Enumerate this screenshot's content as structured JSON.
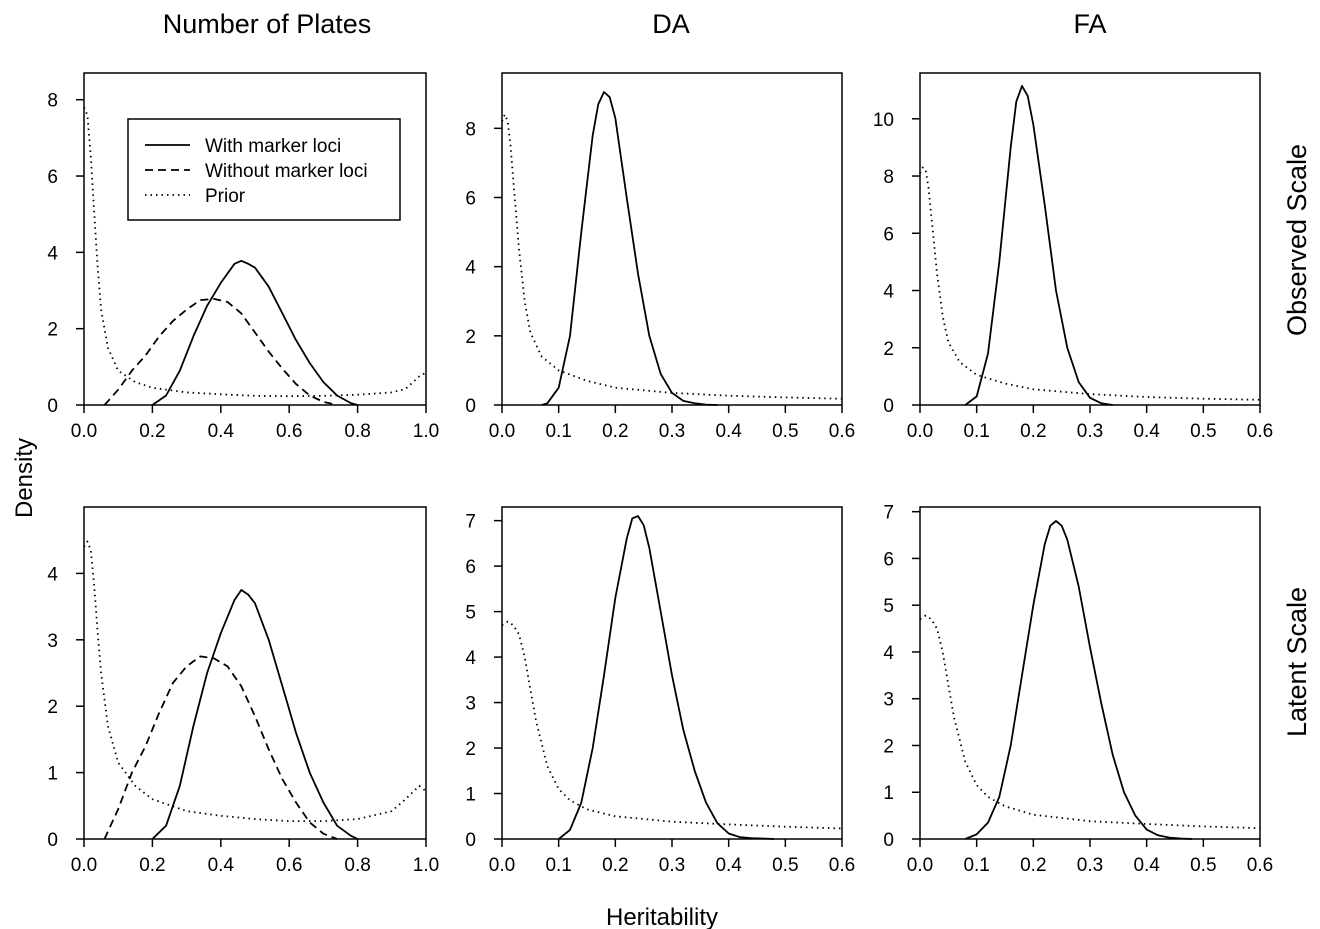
{
  "figure": {
    "column_titles": [
      "Number of Plates",
      "DA",
      "FA"
    ],
    "row_titles": [
      "Observed Scale",
      "Latent Scale"
    ],
    "xlabel": "Heritability",
    "ylabel": "Density"
  },
  "legend": {
    "placement": "top-right inside first panel",
    "entries": [
      {
        "label": "With marker loci",
        "style": "solid"
      },
      {
        "label": "Without marker loci",
        "style": "dashed"
      },
      {
        "label": "Prior",
        "style": "dotted"
      }
    ]
  },
  "chart_data": [
    {
      "type": "line",
      "panel": "Number of Plates / Observed Scale",
      "xlim": [
        0,
        1
      ],
      "ylim": [
        0,
        8.7
      ],
      "xticks": [
        "0.0",
        "0.2",
        "0.4",
        "0.6",
        "0.8",
        "1.0"
      ],
      "yticks": [
        "0",
        "2",
        "4",
        "6",
        "8"
      ],
      "series": [
        {
          "name": "With marker loci",
          "style": "solid",
          "x": [
            0.2,
            0.24,
            0.28,
            0.32,
            0.36,
            0.4,
            0.44,
            0.46,
            0.48,
            0.5,
            0.54,
            0.58,
            0.62,
            0.66,
            0.7,
            0.74,
            0.78,
            0.8
          ],
          "y": [
            0,
            0.25,
            0.9,
            1.8,
            2.6,
            3.2,
            3.7,
            3.78,
            3.7,
            3.6,
            3.1,
            2.4,
            1.7,
            1.1,
            0.6,
            0.25,
            0.05,
            0
          ]
        },
        {
          "name": "Without marker loci",
          "style": "dashed",
          "x": [
            0.06,
            0.1,
            0.14,
            0.18,
            0.22,
            0.26,
            0.3,
            0.34,
            0.38,
            0.42,
            0.46,
            0.5,
            0.54,
            0.58,
            0.62,
            0.66,
            0.7,
            0.74
          ],
          "y": [
            0,
            0.4,
            0.9,
            1.3,
            1.8,
            2.2,
            2.5,
            2.75,
            2.78,
            2.7,
            2.4,
            1.9,
            1.4,
            0.95,
            0.55,
            0.25,
            0.08,
            0
          ]
        },
        {
          "name": "Prior",
          "style": "dotted",
          "x": [
            0,
            0.01,
            0.02,
            0.03,
            0.04,
            0.05,
            0.07,
            0.1,
            0.15,
            0.2,
            0.3,
            0.4,
            0.5,
            0.6,
            0.7,
            0.8,
            0.9,
            0.94,
            0.98,
            1.0
          ],
          "y": [
            7.8,
            7.6,
            6.5,
            5,
            3.6,
            2.5,
            1.5,
            0.9,
            0.6,
            0.45,
            0.33,
            0.28,
            0.24,
            0.23,
            0.24,
            0.27,
            0.33,
            0.42,
            0.75,
            0.85
          ]
        }
      ]
    },
    {
      "type": "line",
      "panel": "DA / Observed Scale",
      "xlim": [
        0,
        0.6
      ],
      "ylim": [
        0,
        9.6
      ],
      "xticks": [
        "0.0",
        "0.1",
        "0.2",
        "0.3",
        "0.4",
        "0.5",
        "0.6"
      ],
      "yticks": [
        "0",
        "2",
        "4",
        "6",
        "8"
      ],
      "series": [
        {
          "name": "With marker loci",
          "style": "solid",
          "x": [
            0.07,
            0.08,
            0.1,
            0.12,
            0.14,
            0.16,
            0.17,
            0.18,
            0.19,
            0.2,
            0.22,
            0.24,
            0.26,
            0.28,
            0.3,
            0.32,
            0.34,
            0.36,
            0.38
          ],
          "y": [
            0,
            0.05,
            0.5,
            2,
            5,
            7.8,
            8.7,
            9.05,
            8.9,
            8.3,
            6,
            3.8,
            2,
            0.9,
            0.35,
            0.12,
            0.05,
            0.01,
            0
          ]
        },
        {
          "name": "Prior",
          "style": "dotted",
          "x": [
            0,
            0.005,
            0.01,
            0.015,
            0.02,
            0.03,
            0.04,
            0.05,
            0.07,
            0.1,
            0.15,
            0.2,
            0.3,
            0.4,
            0.5,
            0.6
          ],
          "y": [
            8.2,
            8.4,
            8.2,
            7.5,
            6.5,
            4.5,
            3,
            2.1,
            1.4,
            1,
            0.7,
            0.5,
            0.35,
            0.27,
            0.22,
            0.18
          ]
        }
      ]
    },
    {
      "type": "line",
      "panel": "FA / Observed Scale",
      "xlim": [
        0,
        0.6
      ],
      "ylim": [
        0,
        11.6
      ],
      "xticks": [
        "0.0",
        "0.1",
        "0.2",
        "0.3",
        "0.4",
        "0.5",
        "0.6"
      ],
      "yticks": [
        "0",
        "2",
        "4",
        "6",
        "8",
        "10"
      ],
      "series": [
        {
          "name": "With marker loci",
          "style": "solid",
          "x": [
            0.08,
            0.1,
            0.12,
            0.14,
            0.16,
            0.17,
            0.18,
            0.19,
            0.2,
            0.22,
            0.24,
            0.26,
            0.28,
            0.3,
            0.32,
            0.34
          ],
          "y": [
            0,
            0.3,
            1.8,
            5,
            9,
            10.6,
            11.15,
            10.8,
            9.8,
            7,
            4,
            2,
            0.8,
            0.25,
            0.06,
            0
          ]
        },
        {
          "name": "Prior",
          "style": "dotted",
          "x": [
            0,
            0.005,
            0.01,
            0.015,
            0.02,
            0.03,
            0.04,
            0.05,
            0.07,
            0.1,
            0.15,
            0.2,
            0.3,
            0.4,
            0.5,
            0.6
          ],
          "y": [
            8.1,
            8.3,
            8.2,
            7.6,
            6.6,
            4.6,
            3.1,
            2.2,
            1.5,
            1.05,
            0.75,
            0.55,
            0.38,
            0.28,
            0.22,
            0.18
          ]
        }
      ]
    },
    {
      "type": "line",
      "panel": "Number of Plates / Latent Scale",
      "xlim": [
        0,
        1
      ],
      "ylim": [
        0,
        5
      ],
      "xticks": [
        "0.0",
        "0.2",
        "0.4",
        "0.6",
        "0.8",
        "1.0"
      ],
      "yticks": [
        "0",
        "1",
        "2",
        "3",
        "4"
      ],
      "series": [
        {
          "name": "With marker loci",
          "style": "solid",
          "x": [
            0.2,
            0.24,
            0.28,
            0.32,
            0.36,
            0.4,
            0.44,
            0.46,
            0.48,
            0.5,
            0.54,
            0.58,
            0.62,
            0.66,
            0.7,
            0.74,
            0.78,
            0.8
          ],
          "y": [
            0,
            0.2,
            0.8,
            1.7,
            2.5,
            3.1,
            3.6,
            3.75,
            3.68,
            3.55,
            3.0,
            2.3,
            1.6,
            1.0,
            0.55,
            0.2,
            0.05,
            0
          ]
        },
        {
          "name": "Without marker loci",
          "style": "dashed",
          "x": [
            0.06,
            0.1,
            0.14,
            0.18,
            0.22,
            0.26,
            0.3,
            0.34,
            0.38,
            0.42,
            0.46,
            0.5,
            0.54,
            0.58,
            0.62,
            0.66,
            0.7,
            0.74
          ],
          "y": [
            0,
            0.45,
            1.0,
            1.4,
            1.9,
            2.35,
            2.6,
            2.75,
            2.72,
            2.6,
            2.3,
            1.85,
            1.35,
            0.9,
            0.55,
            0.25,
            0.08,
            0
          ]
        },
        {
          "name": "Prior",
          "style": "dotted",
          "x": [
            0,
            0.01,
            0.02,
            0.03,
            0.04,
            0.05,
            0.07,
            0.1,
            0.15,
            0.2,
            0.3,
            0.4,
            0.5,
            0.6,
            0.7,
            0.8,
            0.9,
            0.94,
            0.98,
            1.0
          ],
          "y": [
            4.4,
            4.48,
            4.35,
            3.8,
            3.1,
            2.5,
            1.7,
            1.15,
            0.8,
            0.6,
            0.42,
            0.35,
            0.3,
            0.27,
            0.27,
            0.3,
            0.42,
            0.6,
            0.8,
            0.72
          ]
        }
      ]
    },
    {
      "type": "line",
      "panel": "DA / Latent Scale",
      "xlim": [
        0,
        0.6
      ],
      "ylim": [
        0,
        7.3
      ],
      "xticks": [
        "0.0",
        "0.1",
        "0.2",
        "0.3",
        "0.4",
        "0.5",
        "0.6"
      ],
      "yticks": [
        "0",
        "1",
        "2",
        "3",
        "4",
        "5",
        "6",
        "7"
      ],
      "series": [
        {
          "name": "With marker loci",
          "style": "solid",
          "x": [
            0.1,
            0.12,
            0.14,
            0.16,
            0.18,
            0.2,
            0.22,
            0.23,
            0.24,
            0.25,
            0.26,
            0.28,
            0.3,
            0.32,
            0.34,
            0.36,
            0.38,
            0.4,
            0.42,
            0.44,
            0.46,
            0.48
          ],
          "y": [
            0,
            0.2,
            0.8,
            2,
            3.6,
            5.3,
            6.6,
            7.05,
            7.1,
            6.9,
            6.4,
            5,
            3.6,
            2.4,
            1.5,
            0.8,
            0.35,
            0.12,
            0.04,
            0.02,
            0.01,
            0
          ]
        },
        {
          "name": "Prior",
          "style": "dotted",
          "x": [
            0,
            0.01,
            0.02,
            0.03,
            0.04,
            0.05,
            0.06,
            0.08,
            0.1,
            0.12,
            0.15,
            0.2,
            0.3,
            0.4,
            0.5,
            0.6
          ],
          "y": [
            4.7,
            4.78,
            4.7,
            4.5,
            4.0,
            3.3,
            2.6,
            1.6,
            1.1,
            0.85,
            0.65,
            0.5,
            0.38,
            0.32,
            0.27,
            0.23
          ]
        }
      ]
    },
    {
      "type": "line",
      "panel": "FA / Latent Scale",
      "xlim": [
        0,
        0.6
      ],
      "ylim": [
        0,
        7.1
      ],
      "xticks": [
        "0.0",
        "0.1",
        "0.2",
        "0.3",
        "0.4",
        "0.5",
        "0.6"
      ],
      "yticks": [
        "0",
        "1",
        "2",
        "3",
        "4",
        "5",
        "6",
        "7"
      ],
      "series": [
        {
          "name": "With marker loci",
          "style": "solid",
          "x": [
            0.08,
            0.1,
            0.12,
            0.14,
            0.16,
            0.18,
            0.2,
            0.22,
            0.23,
            0.24,
            0.25,
            0.26,
            0.28,
            0.3,
            0.32,
            0.34,
            0.36,
            0.38,
            0.4,
            0.42,
            0.44,
            0.46,
            0.48
          ],
          "y": [
            0,
            0.1,
            0.35,
            0.9,
            2.0,
            3.5,
            5.0,
            6.3,
            6.7,
            6.8,
            6.7,
            6.4,
            5.4,
            4.1,
            2.9,
            1.8,
            1.0,
            0.5,
            0.2,
            0.08,
            0.03,
            0.01,
            0
          ]
        },
        {
          "name": "Prior",
          "style": "dotted",
          "x": [
            0,
            0.01,
            0.02,
            0.03,
            0.04,
            0.05,
            0.06,
            0.08,
            0.1,
            0.12,
            0.15,
            0.2,
            0.3,
            0.4,
            0.5,
            0.6
          ],
          "y": [
            4.7,
            4.78,
            4.7,
            4.5,
            4.0,
            3.3,
            2.6,
            1.65,
            1.15,
            0.9,
            0.7,
            0.52,
            0.38,
            0.32,
            0.27,
            0.23
          ]
        }
      ]
    }
  ]
}
